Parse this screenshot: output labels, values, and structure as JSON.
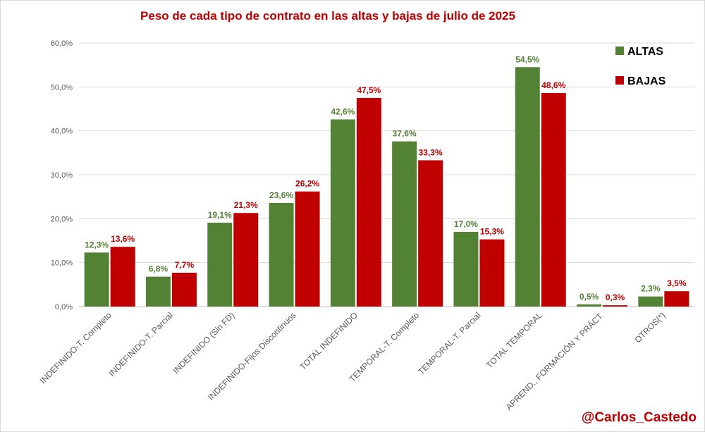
{
  "chart_data": {
    "type": "bar",
    "title": "Peso de cada tipo de contrato en las altas y bajas de julio de 2025",
    "categories": [
      "INDEFINIDO-T. Completo",
      "INDEFINIDO-T. Parcial",
      "INDEFINIDO (Sin FD)",
      "INDEFINIDO-Fijos Discontinuos",
      "TOTAL INDEFINIDO",
      "TEMPORAL-T. Completo",
      "TEMPORAL-T. Parcial",
      "TOTAL TEMPORAL",
      "APREND., FORMACIÓN Y PRÁCT.",
      "OTROS(*)"
    ],
    "series": [
      {
        "name": "ALTAS",
        "color": "#548235",
        "values": [
          12.3,
          6.8,
          19.1,
          23.6,
          42.6,
          37.6,
          17.0,
          54.5,
          0.5,
          2.3
        ],
        "labels": [
          "12,3%",
          "6,8%",
          "19,1%",
          "23,6%",
          "42,6%",
          "37,6%",
          "17,0%",
          "54,5%",
          "0,5%",
          "2,3%"
        ]
      },
      {
        "name": "BAJAS",
        "color": "#c00000",
        "values": [
          13.6,
          7.7,
          21.3,
          26.2,
          47.5,
          33.3,
          15.3,
          48.6,
          0.3,
          3.5
        ],
        "labels": [
          "13,6%",
          "7,7%",
          "21,3%",
          "26,2%",
          "47,5%",
          "33,3%",
          "15,3%",
          "48,6%",
          "0,3%",
          "3,5%"
        ]
      }
    ],
    "ylim": [
      0,
      60
    ],
    "yticks": [
      "0,0%",
      "10,0%",
      "20,0%",
      "30,0%",
      "40,0%",
      "50,0%",
      "60,0%"
    ],
    "grid": true,
    "legend_position": "top-right",
    "xlabel": "",
    "ylabel": ""
  },
  "signature": "@Carlos_Castedo"
}
